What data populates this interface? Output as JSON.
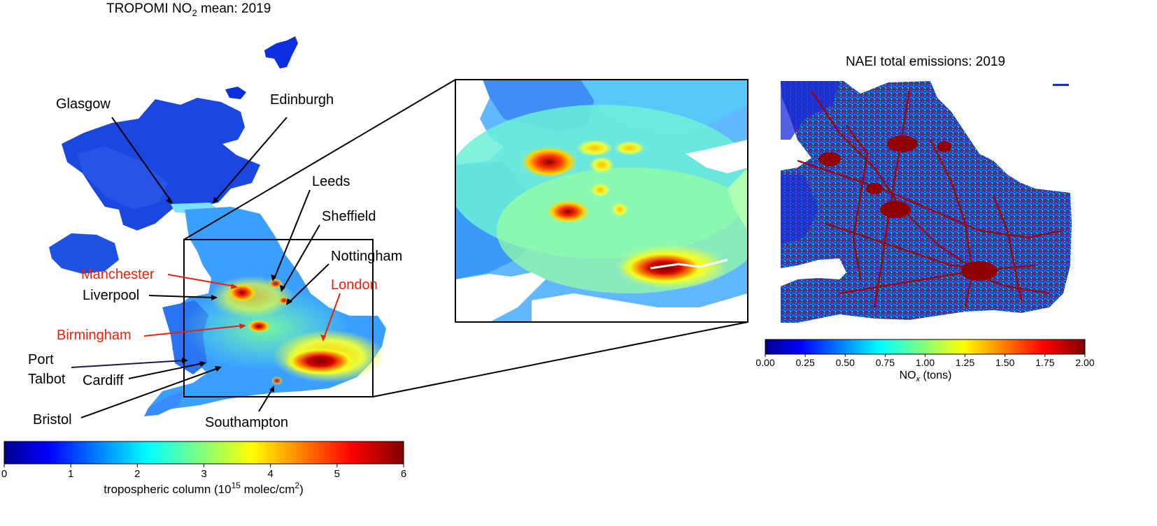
{
  "left_panel": {
    "title_prefix": "TROPOMI NO",
    "title_sub": "2",
    "title_suffix": " mean: 2019",
    "colorbar": {
      "min": 0,
      "max": 6,
      "tick_labels": [
        "0",
        "1",
        "2",
        "3",
        "4",
        "5",
        "6"
      ],
      "label_prefix": "tropospheric column (10",
      "label_sup1": "15",
      "label_mid": " molec/cm",
      "label_sup2": "2",
      "label_suffix": ")"
    },
    "cities": [
      {
        "name": "Glasgow",
        "color": "#000000"
      },
      {
        "name": "Edinburgh",
        "color": "#000000"
      },
      {
        "name": "Leeds",
        "color": "#000000"
      },
      {
        "name": "Sheffield",
        "color": "#000000"
      },
      {
        "name": "Nottingham",
        "color": "#000000"
      },
      {
        "name": "Manchester",
        "color": "#e8200c"
      },
      {
        "name": "London",
        "color": "#e8200c"
      },
      {
        "name": "Liverpool",
        "color": "#000000"
      },
      {
        "name": "Birmingham",
        "color": "#e8200c"
      },
      {
        "name": "Port",
        "color": "#000000"
      },
      {
        "name": "Talbot",
        "color": "#000000"
      },
      {
        "name": "Cardiff",
        "color": "#000000"
      },
      {
        "name": "Bristol",
        "color": "#000000"
      },
      {
        "name": "Southampton",
        "color": "#000000"
      }
    ]
  },
  "right_panel": {
    "title": "NAEI total emissions: 2019",
    "colorbar": {
      "min": 0.0,
      "max": 2.0,
      "tick_labels": [
        "0.00",
        "0.25",
        "0.50",
        "0.75",
        "1.00",
        "1.25",
        "1.50",
        "1.75",
        "2.00"
      ],
      "label_prefix": "NO",
      "label_sub": "x",
      "label_suffix": " (tons)"
    }
  },
  "colors": {
    "jet_dark_blue": "#00008f",
    "jet_blue": "#0050ff",
    "jet_cyan": "#00ffff",
    "jet_yellow": "#ffff00",
    "jet_red": "#ff2000",
    "jet_dark_red": "#800000",
    "highlight_city": "#e8200c"
  }
}
